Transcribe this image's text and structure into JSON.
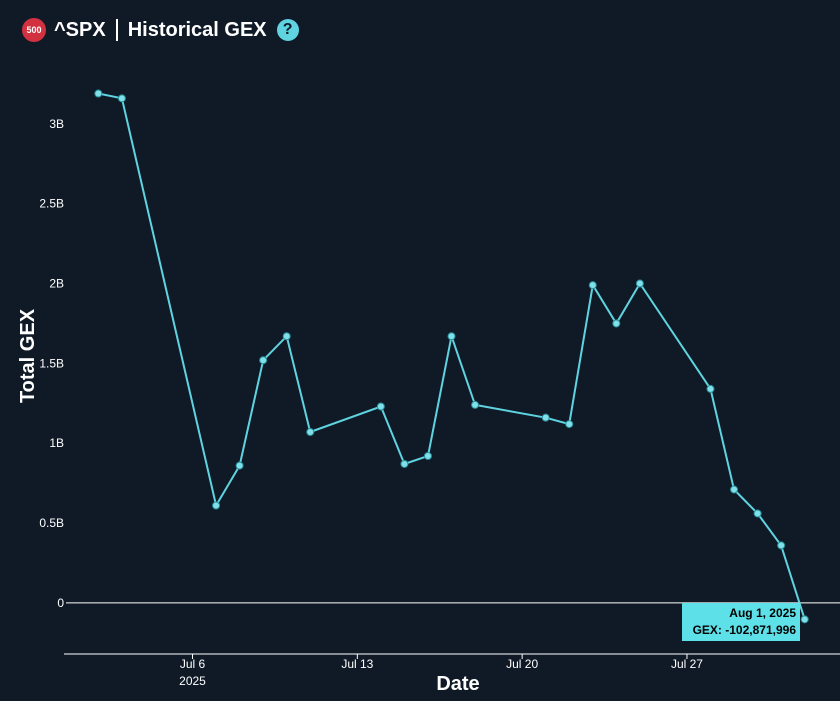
{
  "header": {
    "badge": "500",
    "ticker": "^SPX",
    "title": "Historical GEX",
    "help": "?"
  },
  "colors": {
    "background": "#101a27",
    "line": "#5fd3e0",
    "point_fill": "#7fe0ea",
    "axis": "#ffffff",
    "tooltip_bg": "#5ee0e8"
  },
  "chart_data": {
    "type": "line",
    "title": "",
    "xlabel": "Date",
    "ylabel": "Total GEX",
    "x_ticks": [
      {
        "date": "2025-07-06",
        "label": "Jul 6",
        "sublabel": "2025"
      },
      {
        "date": "2025-07-13",
        "label": "Jul 13",
        "sublabel": ""
      },
      {
        "date": "2025-07-20",
        "label": "Jul 20",
        "sublabel": ""
      },
      {
        "date": "2025-07-27",
        "label": "Jul 27",
        "sublabel": ""
      }
    ],
    "y_ticks": [
      {
        "value": 0,
        "label": "0"
      },
      {
        "value": 500000000,
        "label": "0.5B"
      },
      {
        "value": 1000000000,
        "label": "1B"
      },
      {
        "value": 1500000000,
        "label": "1.5B"
      },
      {
        "value": 2000000000,
        "label": "2B"
      },
      {
        "value": 2500000000,
        "label": "2.5B"
      },
      {
        "value": 3000000000,
        "label": "3B"
      }
    ],
    "ylim": [
      -320000000,
      3400000000
    ],
    "xlim": [
      "2025-06-30T13:00",
      "2025-08-02T12:00"
    ],
    "grid": false,
    "zero_line": true,
    "series": [
      {
        "x": [
          "2025-07-02",
          "2025-07-03",
          "2025-07-07",
          "2025-07-08",
          "2025-07-09",
          "2025-07-10",
          "2025-07-11",
          "2025-07-14",
          "2025-07-15",
          "2025-07-16",
          "2025-07-17",
          "2025-07-18",
          "2025-07-21",
          "2025-07-22",
          "2025-07-23",
          "2025-07-24",
          "2025-07-25",
          "2025-07-28",
          "2025-07-29",
          "2025-07-30",
          "2025-07-31",
          "2025-08-01"
        ],
        "y": [
          3190000000,
          3160000000,
          610000000,
          860000000,
          1520000000,
          1670000000,
          1070000000,
          1230000000,
          870000000,
          920000000,
          1670000000,
          1240000000,
          1160000000,
          1120000000,
          1990000000,
          1750000000,
          2000000000,
          1340000000,
          710000000,
          560000000,
          360000000,
          -102871996
        ]
      }
    ],
    "tooltip": {
      "date": "Aug 1, 2025",
      "text": "GEX: -102,871,996"
    }
  }
}
